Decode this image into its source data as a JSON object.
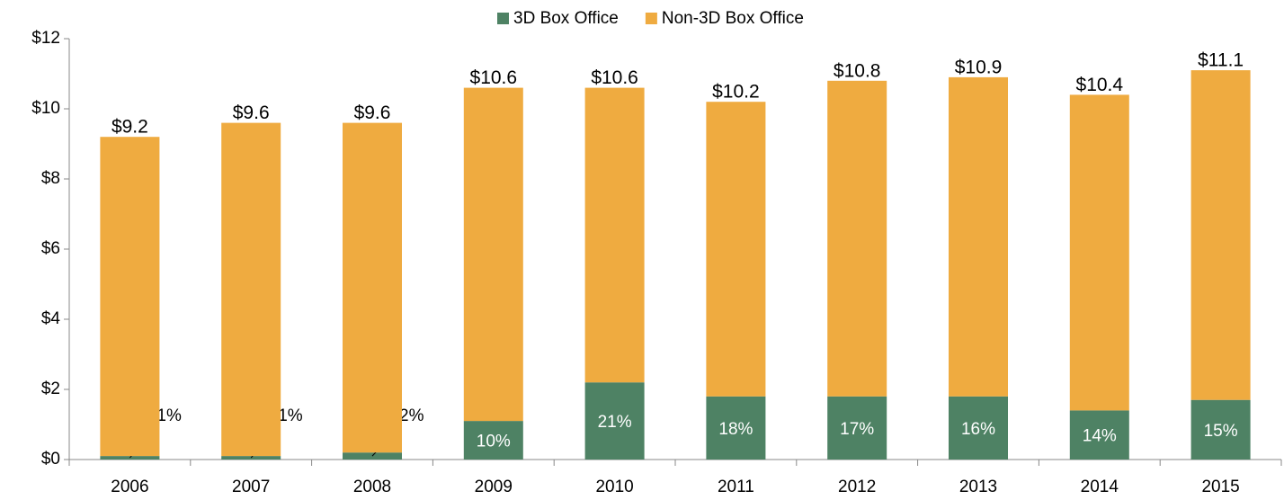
{
  "chart_data": {
    "type": "stacked_bar",
    "categories": [
      "2006",
      "2007",
      "2008",
      "2009",
      "2010",
      "2011",
      "2012",
      "2013",
      "2014",
      "2015"
    ],
    "series": [
      {
        "name": "3D Box Office",
        "color": "#4e8264",
        "values": [
          0.1,
          0.1,
          0.2,
          1.1,
          2.2,
          1.8,
          1.8,
          1.8,
          1.4,
          1.7
        ],
        "value_labels": [
          "1%",
          "1%",
          "2%",
          "10%",
          "21%",
          "18%",
          "17%",
          "16%",
          "14%",
          "15%"
        ]
      },
      {
        "name": "Non-3D Box Office",
        "color": "#efab40",
        "values": [
          9.1,
          9.5,
          9.4,
          9.5,
          8.4,
          8.4,
          9.0,
          9.1,
          9.0,
          9.4
        ]
      }
    ],
    "total_labels": [
      "$9.2",
      "$9.6",
      "$9.6",
      "$10.6",
      "$10.6",
      "$10.2",
      "$10.8",
      "$10.9",
      "$10.4",
      "$11.1"
    ],
    "ylim": [
      0,
      12
    ],
    "yticks": [
      {
        "value": 0,
        "label": "$0"
      },
      {
        "value": 2,
        "label": "$2"
      },
      {
        "value": 4,
        "label": "$4"
      },
      {
        "value": 6,
        "label": "$6"
      },
      {
        "value": 8,
        "label": "$8"
      },
      {
        "value": 10,
        "label": "$10"
      },
      {
        "value": 12,
        "label": "$12"
      }
    ],
    "grid": false,
    "legend": "top"
  }
}
